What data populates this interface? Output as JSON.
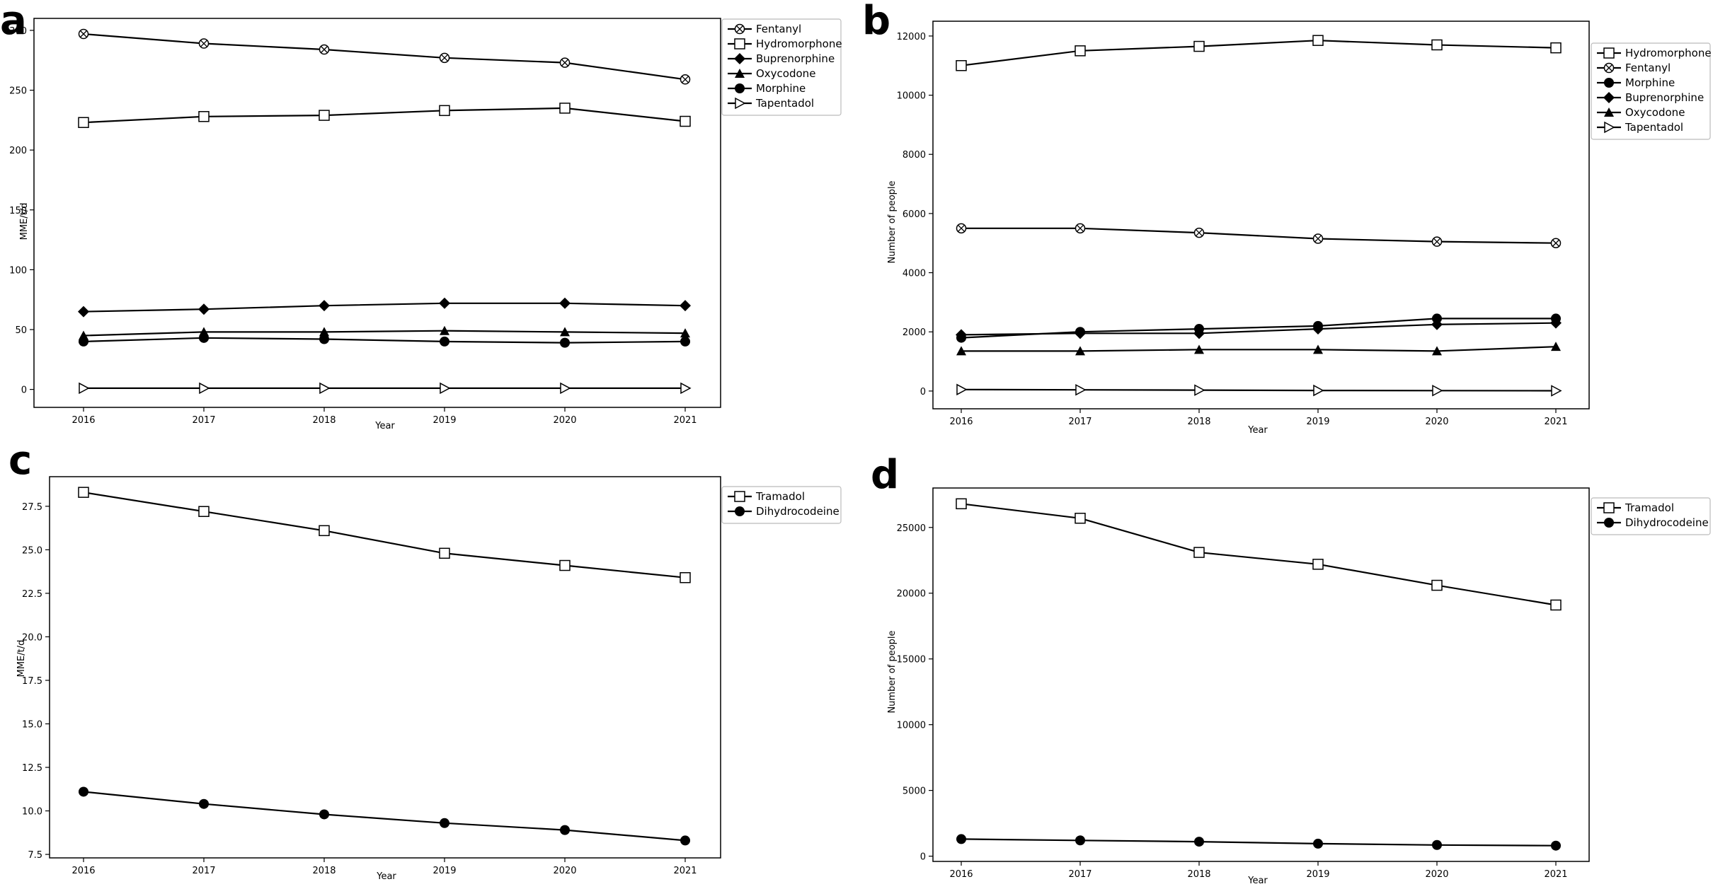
{
  "chart_data": [
    {
      "panel": "a",
      "type": "line",
      "xlabel": "Year",
      "ylabel": "MME/t/d",
      "x": [
        2016,
        2017,
        2018,
        2019,
        2020,
        2021
      ],
      "ylim": [
        -15,
        310
      ],
      "yticks": [
        0,
        50,
        100,
        150,
        200,
        250,
        300
      ],
      "ytick_labels": [
        "0",
        "50",
        "100",
        "150",
        "200",
        "250",
        "300"
      ],
      "legend_position": "outside-right-top",
      "series": [
        {
          "name": "Fentanyl",
          "marker": "crossed-circle",
          "values": [
            297,
            289,
            284,
            277,
            273,
            259
          ]
        },
        {
          "name": "Hydromorphone",
          "marker": "square-open",
          "values": [
            223,
            228,
            229,
            233,
            235,
            224
          ]
        },
        {
          "name": "Buprenorphine",
          "marker": "diamond-filled",
          "values": [
            65,
            67,
            70,
            72,
            72,
            70
          ]
        },
        {
          "name": "Oxycodone",
          "marker": "triangle-filled",
          "values": [
            45,
            48,
            48,
            49,
            48,
            47
          ]
        },
        {
          "name": "Morphine",
          "marker": "circle-filled",
          "values": [
            40,
            43,
            42,
            40,
            39,
            40
          ]
        },
        {
          "name": "Tapentadol",
          "marker": "triangle-right-open",
          "values": [
            1,
            1,
            1,
            1,
            1,
            1
          ]
        }
      ]
    },
    {
      "panel": "b",
      "type": "line",
      "xlabel": "Year",
      "ylabel": "Number of people",
      "x": [
        2016,
        2017,
        2018,
        2019,
        2020,
        2021
      ],
      "ylim": [
        -600,
        12500
      ],
      "yticks": [
        0,
        2000,
        4000,
        6000,
        8000,
        10000,
        12000
      ],
      "ytick_labels": [
        "0",
        "2000",
        "4000",
        "6000",
        "8000",
        "10000",
        "12000"
      ],
      "legend_position": "outside-right-top",
      "series": [
        {
          "name": "Hydromorphone",
          "marker": "square-open",
          "values": [
            11000,
            11500,
            11650,
            11850,
            11700,
            11600
          ]
        },
        {
          "name": "Fentanyl",
          "marker": "crossed-circle",
          "values": [
            5500,
            5500,
            5350,
            5150,
            5050,
            5000
          ]
        },
        {
          "name": "Morphine",
          "marker": "circle-filled",
          "values": [
            1800,
            2000,
            2100,
            2200,
            2450,
            2450
          ]
        },
        {
          "name": "Buprenorphine",
          "marker": "diamond-filled",
          "values": [
            1900,
            1950,
            1950,
            2100,
            2250,
            2300
          ]
        },
        {
          "name": "Oxycodone",
          "marker": "triangle-filled",
          "values": [
            1350,
            1350,
            1400,
            1400,
            1350,
            1500
          ]
        },
        {
          "name": "Tapentadol",
          "marker": "triangle-right-open",
          "values": [
            50,
            40,
            30,
            20,
            15,
            10
          ]
        }
      ]
    },
    {
      "panel": "c",
      "type": "line",
      "xlabel": "Year",
      "ylabel": "MME/t/d",
      "x": [
        2016,
        2017,
        2018,
        2019,
        2020,
        2021
      ],
      "ylim": [
        7.3,
        29.2
      ],
      "yticks": [
        7.5,
        10.0,
        12.5,
        15.0,
        17.5,
        20.0,
        22.5,
        25.0,
        27.5
      ],
      "ytick_labels": [
        "7.5",
        "10.0",
        "12.5",
        "15.0",
        "17.5",
        "20.0",
        "22.5",
        "25.0",
        "27.5"
      ],
      "legend_position": "outside-right-top",
      "series": [
        {
          "name": "Tramadol",
          "marker": "square-open",
          "values": [
            28.3,
            27.2,
            26.1,
            24.8,
            24.1,
            23.4
          ]
        },
        {
          "name": "Dihydrocodeine",
          "marker": "circle-filled",
          "values": [
            11.1,
            10.4,
            9.8,
            9.3,
            8.9,
            8.3
          ]
        }
      ]
    },
    {
      "panel": "d",
      "type": "line",
      "xlabel": "Year",
      "ylabel": "Number of people",
      "x": [
        2016,
        2017,
        2018,
        2019,
        2020,
        2021
      ],
      "ylim": [
        -400,
        28000
      ],
      "yticks": [
        0,
        5000,
        10000,
        15000,
        20000,
        25000
      ],
      "ytick_labels": [
        "0",
        "5000",
        "10000",
        "15000",
        "20000",
        "25000"
      ],
      "legend_position": "outside-right-top",
      "series": [
        {
          "name": "Tramadol",
          "marker": "square-open",
          "values": [
            26800,
            25700,
            23100,
            22200,
            20600,
            19100
          ]
        },
        {
          "name": "Dihydrocodeine",
          "marker": "circle-filled",
          "values": [
            1300,
            1200,
            1100,
            950,
            850,
            800
          ]
        }
      ]
    }
  ]
}
